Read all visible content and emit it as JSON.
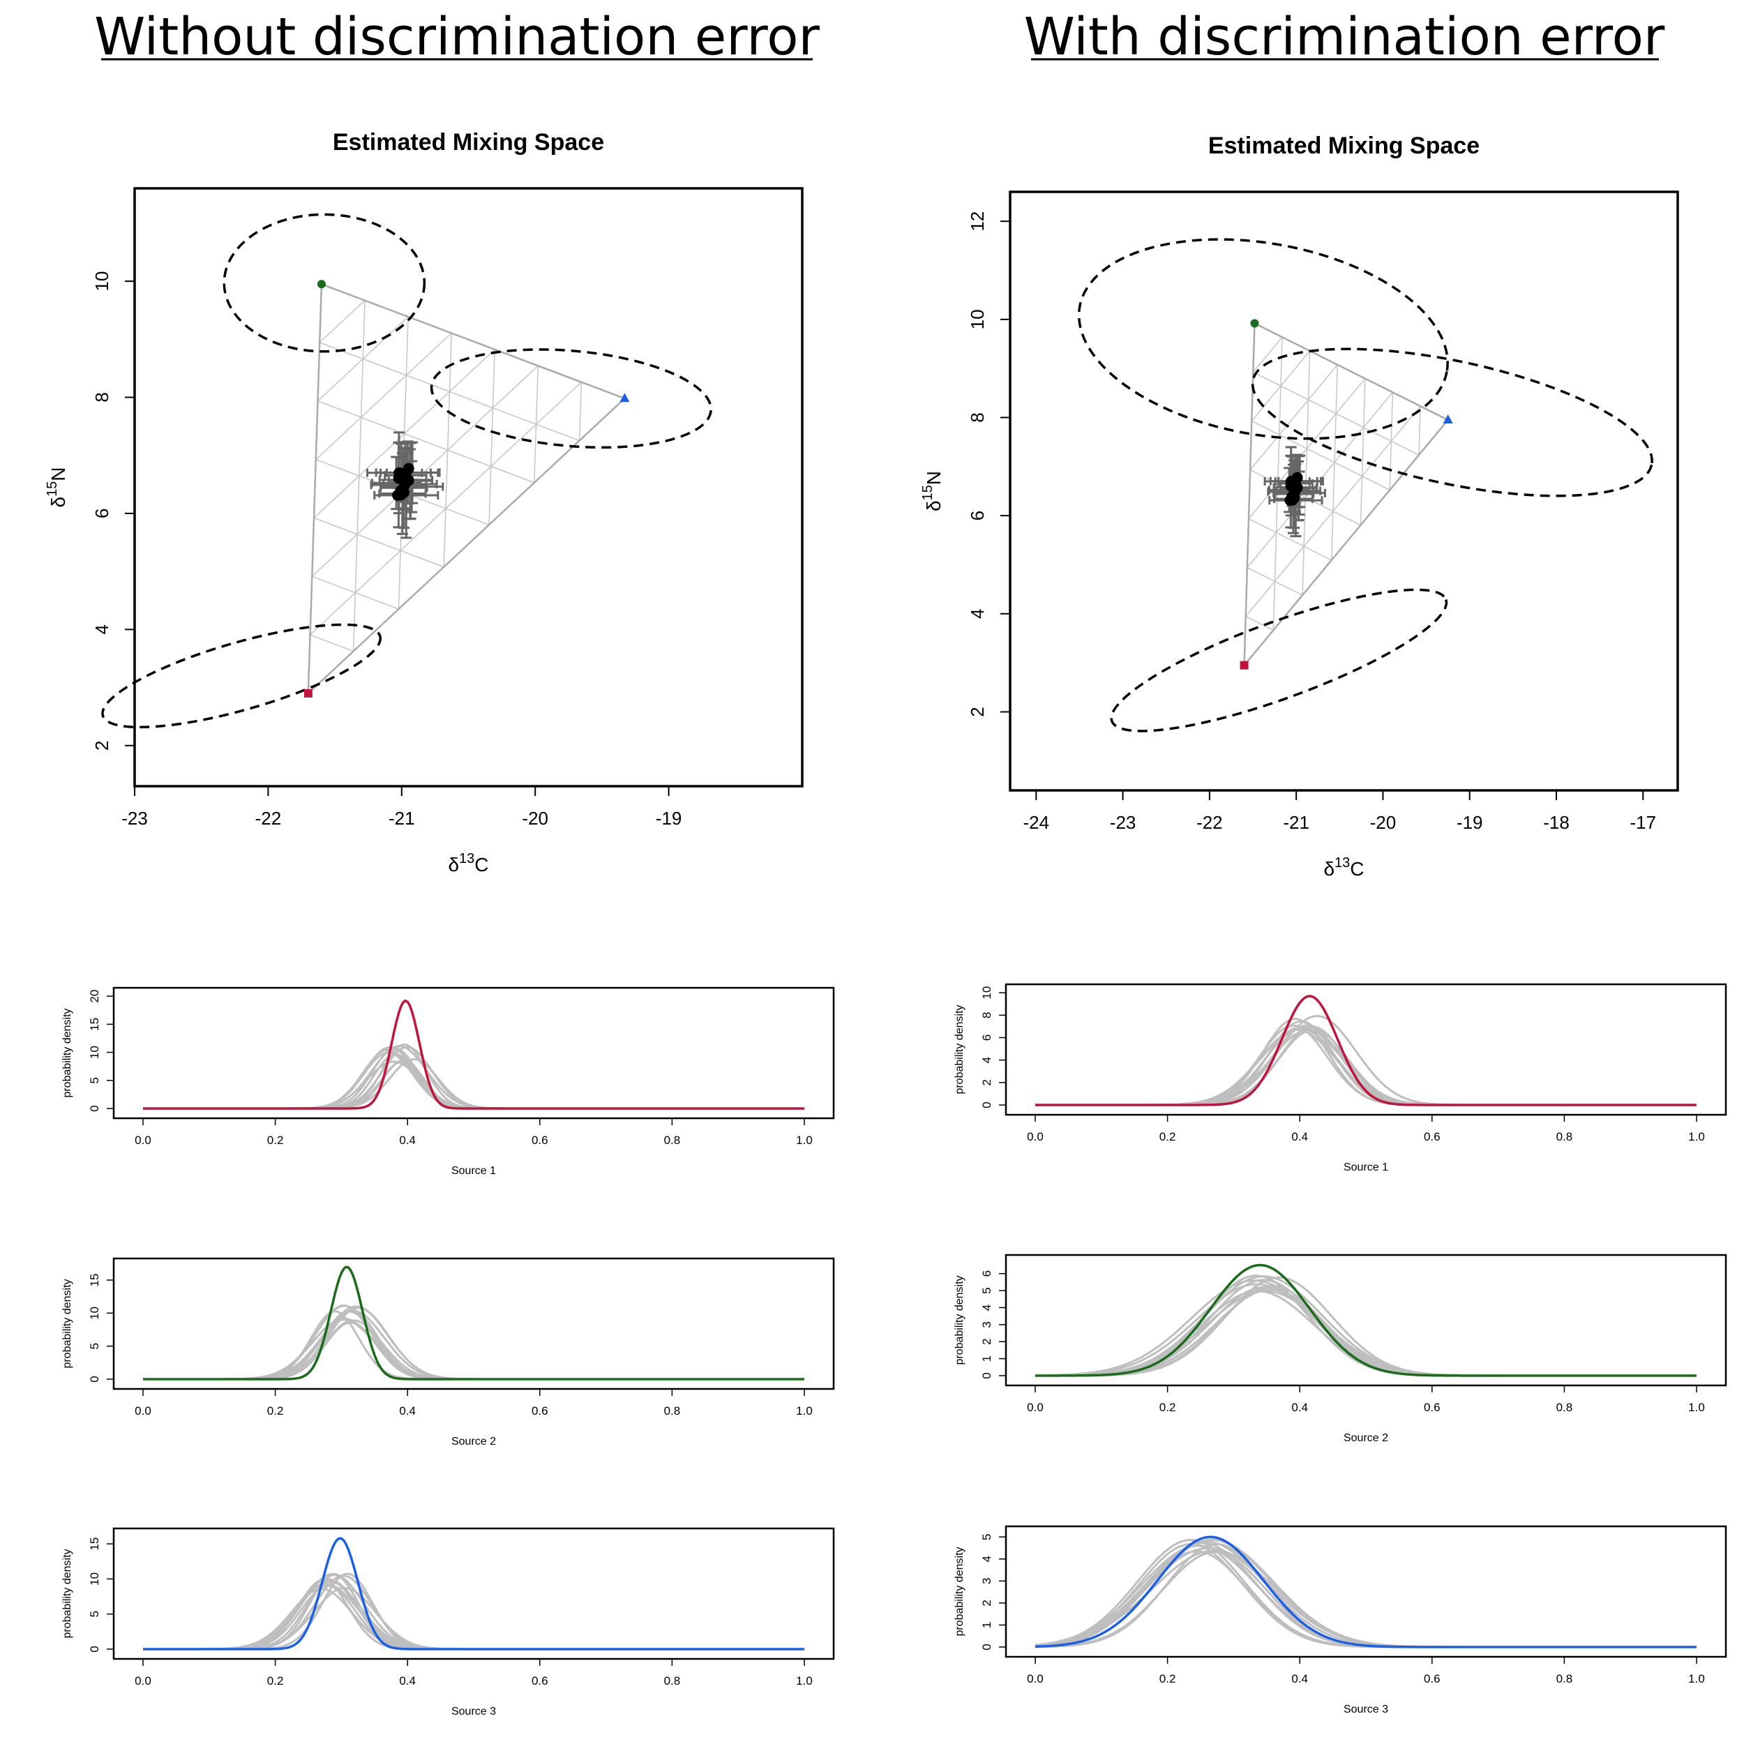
{
  "titles": {
    "left": "Without discrimination error",
    "right": "With discrimination error"
  },
  "colors": {
    "source1": "#C0143C",
    "source2": "#1A6B1A",
    "source3": "#1A5FE8",
    "sim_curves": "#BEBEBE",
    "mixing_grid": "#BEBEBE",
    "consumer_bars": "#666666",
    "consumer_points": "#000000"
  },
  "chart_data": [
    {
      "type": "scatter",
      "panel": "left-mixing",
      "title": "Estimated Mixing Space",
      "xlabel": "δ13C",
      "ylabel": "δ15N",
      "xlim": [
        -23,
        -18
      ],
      "ylim": [
        1.3,
        11.6
      ],
      "xticks": [
        -23,
        -22,
        -21,
        -20,
        -19
      ],
      "yticks": [
        2,
        4,
        6,
        8,
        10
      ],
      "sources": [
        {
          "name": "Source 1",
          "x": -21.7,
          "y": 2.9,
          "marker": "square",
          "color": "#C0143C"
        },
        {
          "name": "Source 2",
          "x": -21.6,
          "y": 9.95,
          "marker": "circle",
          "color": "#1A6B1A"
        },
        {
          "name": "Source 3",
          "x": -19.33,
          "y": 7.98,
          "marker": "triangle",
          "color": "#1A5FE8"
        }
      ],
      "ellipses": [
        {
          "source": "Source 1",
          "cx": -22.2,
          "cy": 3.2,
          "rx": 1.08,
          "ry": 0.58,
          "angle": 16
        },
        {
          "source": "Source 2",
          "cx": -21.58,
          "cy": 9.97,
          "rx": 0.75,
          "ry": 1.18,
          "angle": 0
        },
        {
          "source": "Source 3",
          "cx": -19.73,
          "cy": 7.98,
          "rx": 1.05,
          "ry": 0.82,
          "angle": -5
        }
      ],
      "consumers": {
        "center_x": -20.98,
        "center_y": 6.55,
        "x_err": 0.22,
        "y_err": 0.72
      }
    },
    {
      "type": "scatter",
      "panel": "right-mixing",
      "title": "Estimated Mixing Space",
      "xlabel": "δ13C",
      "ylabel": "δ15N",
      "xlim": [
        -24.3,
        -16.6
      ],
      "ylim": [
        0.4,
        12.6
      ],
      "xticks": [
        -24,
        -23,
        -22,
        -21,
        -20,
        -19,
        -18,
        -17
      ],
      "yticks": [
        2,
        4,
        6,
        8,
        10,
        12
      ],
      "sources": [
        {
          "name": "Source 1",
          "x": -21.6,
          "y": 2.95,
          "marker": "square",
          "color": "#C0143C"
        },
        {
          "name": "Source 2",
          "x": -21.48,
          "y": 9.92,
          "marker": "circle",
          "color": "#1A6B1A"
        },
        {
          "name": "Source 3",
          "x": -19.25,
          "y": 7.95,
          "marker": "triangle",
          "color": "#1A5FE8"
        }
      ],
      "ellipses": [
        {
          "source": "Source 1",
          "cx": -21.2,
          "cy": 3.05,
          "rx": 2.05,
          "ry": 0.78,
          "angle": 20
        },
        {
          "source": "Source 2",
          "cx": -21.38,
          "cy": 9.6,
          "rx": 2.15,
          "ry": 1.95,
          "angle": -10
        },
        {
          "source": "Source 3",
          "cx": -19.2,
          "cy": 7.9,
          "rx": 2.35,
          "ry": 1.25,
          "angle": -12
        }
      ],
      "consumers": {
        "center_x": -21.02,
        "center_y": 6.55,
        "x_err": 0.28,
        "y_err": 0.72
      }
    },
    {
      "type": "line",
      "panel": "left-source1",
      "xlabel": "Source 1",
      "ylabel": "probability density",
      "xlim": [
        0,
        1
      ],
      "ylim": [
        0,
        20
      ],
      "yticks": [
        0,
        5,
        10,
        15,
        20
      ],
      "xticks": [
        0.0,
        0.2,
        0.4,
        0.6,
        0.8,
        1.0
      ],
      "posterior": {
        "mean": 0.397,
        "sd": 0.021,
        "peak": 19.2,
        "color": "#C0143C"
      },
      "simulations": {
        "mean": 0.39,
        "sd": 0.036,
        "peak_range": [
          8.0,
          11.5
        ],
        "count": 12
      }
    },
    {
      "type": "line",
      "panel": "left-source2",
      "xlabel": "Source 2",
      "ylabel": "probability density",
      "xlim": [
        0,
        1
      ],
      "ylim": [
        0,
        17
      ],
      "yticks": [
        0,
        5,
        10,
        15
      ],
      "xticks": [
        0.0,
        0.2,
        0.4,
        0.6,
        0.8,
        1.0
      ],
      "posterior": {
        "mean": 0.308,
        "sd": 0.024,
        "peak": 17.0,
        "color": "#1A6B1A"
      },
      "simulations": {
        "mean": 0.31,
        "sd": 0.042,
        "peak_range": [
          8.5,
          11.5
        ],
        "count": 12
      }
    },
    {
      "type": "line",
      "panel": "left-source3",
      "xlabel": "Source 3",
      "ylabel": "probability density",
      "xlim": [
        0,
        1
      ],
      "ylim": [
        0,
        16
      ],
      "yticks": [
        0,
        5,
        10,
        15
      ],
      "xticks": [
        0.0,
        0.2,
        0.4,
        0.6,
        0.8,
        1.0
      ],
      "posterior": {
        "mean": 0.298,
        "sd": 0.027,
        "peak": 15.8,
        "color": "#1A5FE8"
      },
      "simulations": {
        "mean": 0.29,
        "sd": 0.043,
        "peak_range": [
          8.5,
          10.8
        ],
        "count": 12
      }
    },
    {
      "type": "line",
      "panel": "right-source1",
      "xlabel": "Source 1",
      "ylabel": "probability density",
      "xlim": [
        0,
        1
      ],
      "ylim": [
        0,
        10
      ],
      "yticks": [
        0,
        2,
        4,
        6,
        8,
        10
      ],
      "xticks": [
        0.0,
        0.2,
        0.4,
        0.6,
        0.8,
        1.0
      ],
      "posterior": {
        "mean": 0.415,
        "sd": 0.042,
        "peak": 9.7,
        "color": "#C0143C"
      },
      "simulations": {
        "mean": 0.41,
        "sd": 0.055,
        "peak_range": [
          6.5,
          8.0
        ],
        "count": 12
      }
    },
    {
      "type": "line",
      "panel": "right-source2",
      "xlabel": "Source 2",
      "ylabel": "probability density",
      "xlim": [
        0,
        1
      ],
      "ylim": [
        0,
        6.6
      ],
      "yticks": [
        0,
        1,
        2,
        3,
        4,
        5,
        6
      ],
      "xticks": [
        0.0,
        0.2,
        0.4,
        0.6,
        0.8,
        1.0
      ],
      "posterior": {
        "mean": 0.34,
        "sd": 0.075,
        "peak": 6.5,
        "color": "#1A6B1A"
      },
      "simulations": {
        "mean": 0.35,
        "sd": 0.085,
        "peak_range": [
          4.8,
          5.9
        ],
        "count": 12
      }
    },
    {
      "type": "line",
      "panel": "right-source3",
      "xlabel": "Source 3",
      "ylabel": "probability density",
      "xlim": [
        0,
        1
      ],
      "ylim": [
        0,
        5.1
      ],
      "yticks": [
        0,
        1,
        2,
        3,
        4,
        5
      ],
      "xticks": [
        0.0,
        0.2,
        0.4,
        0.6,
        0.8,
        1.0
      ],
      "posterior": {
        "mean": 0.265,
        "sd": 0.08,
        "peak": 5.0,
        "color": "#1A5FE8"
      },
      "simulations": {
        "mean": 0.255,
        "sd": 0.085,
        "peak_range": [
          4.3,
          4.9
        ],
        "count": 12
      }
    }
  ]
}
